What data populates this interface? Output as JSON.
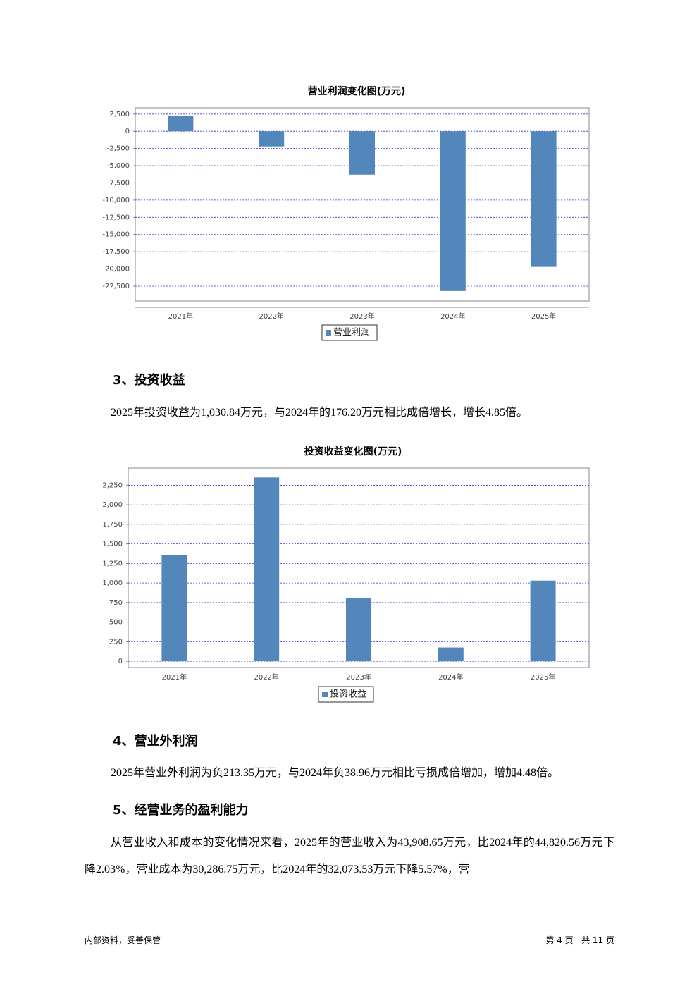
{
  "chart_data": [
    {
      "type": "bar",
      "title": "营业利润变化图(万元)",
      "categories": [
        "2021年",
        "2022年",
        "2023年",
        "2024年",
        "2025年"
      ],
      "series": [
        {
          "name": "营业利润",
          "color": "#5387bc",
          "values": [
            2200,
            -2200,
            -6300,
            -23200,
            -19700
          ]
        }
      ],
      "ylim": [
        -24650,
        3400
      ],
      "yticks": [
        {
          "value": 2500,
          "label": "2,500"
        },
        0,
        {
          "value": -2500,
          "label": "-2,500"
        },
        {
          "value": -5000,
          "label": "-5,000"
        },
        {
          "value": -7500,
          "label": "-7,500"
        },
        {
          "value": -10000,
          "label": "-10,000"
        },
        {
          "value": -12500,
          "label": "-12,500"
        },
        {
          "value": -15000,
          "label": "-15,000"
        },
        {
          "value": -17500,
          "label": "-17,500"
        },
        {
          "value": -20000,
          "label": "-20,000"
        },
        {
          "value": -22500,
          "label": "-22,500"
        }
      ],
      "grid": true,
      "legend": "bottom"
    },
    {
      "type": "bar",
      "title": "投资收益变化图(万元)",
      "categories": [
        "2021年",
        "2022年",
        "2023年",
        "2024年",
        "2025年"
      ],
      "series": [
        {
          "name": "投资收益",
          "color": "#5387bc",
          "values": [
            1360,
            2350,
            810,
            176.2,
            1030.84
          ]
        }
      ],
      "ylim": [
        -80,
        2470
      ],
      "yticks": [
        {
          "value": 2250,
          "label": "2,250"
        },
        {
          "value": 2000,
          "label": "2,000"
        },
        {
          "value": 1750,
          "label": "1,750"
        },
        {
          "value": 1500,
          "label": "1,500"
        },
        {
          "value": 1250,
          "label": "1,250"
        },
        {
          "value": 1000,
          "label": "1,000"
        },
        750,
        500,
        250,
        0
      ],
      "grid": true,
      "legend": "bottom"
    }
  ],
  "sections": [
    {
      "heading": "3、投资收益",
      "paragraphs": [
        "2025年投资收益为1,030.84万元，与2024年的176.20万元相比成倍增长，增长4.85倍。"
      ]
    },
    {
      "heading": "4、营业外利润",
      "paragraphs": [
        "2025年营业外利润为负213.35万元，与2024年负38.96万元相比亏损成倍增加，增加4.48倍。"
      ]
    },
    {
      "heading": "5、经营业务的盈利能力",
      "paragraphs": [
        "从营业收入和成本的变化情况来看，2025年的营业收入为43,908.65万元，比2024年的44,820.56万元下降2.03%，营业成本为30,286.75万元，比2024年的32,073.53万元下降5.57%，营"
      ]
    }
  ],
  "footer": {
    "left": "内部资料，妥善保管",
    "right": "第 4 页   共 11 页"
  }
}
